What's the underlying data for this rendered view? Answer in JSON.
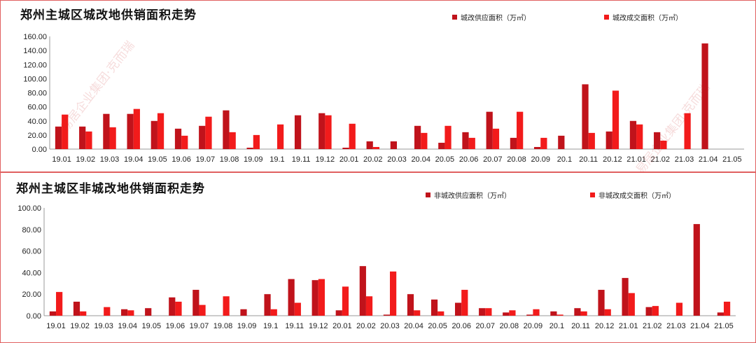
{
  "watermark_text": "易居企业集团·克而瑞",
  "chart_data": [
    {
      "type": "bar",
      "title": "郑州主城区城改地供销面积走势",
      "categories": [
        "19.01",
        "19.02",
        "19.03",
        "19.04",
        "19.05",
        "19.06",
        "19.07",
        "19.08",
        "19.09",
        "19.1",
        "19.11",
        "19.12",
        "20.01",
        "20.02",
        "20.03",
        "20.04",
        "20.05",
        "20.06",
        "20.07",
        "20.08",
        "20.09",
        "20.1",
        "20.11",
        "20.12",
        "21.01",
        "21.02",
        "21.03",
        "21.04",
        "21.05"
      ],
      "yticks": [
        "0.00",
        "20.00",
        "40.00",
        "60.00",
        "80.00",
        "100.00",
        "120.00",
        "140.00",
        "160.00"
      ],
      "ylim": [
        0,
        160
      ],
      "legend_position": "top-right",
      "series": [
        {
          "name": "城改供应面积（万㎡）",
          "color": "#c0131b",
          "values": [
            32,
            32,
            50,
            50,
            40,
            29,
            33,
            55,
            2,
            0,
            48,
            51,
            2,
            11,
            11,
            33,
            9,
            24,
            53,
            16,
            3,
            19,
            92,
            25,
            40,
            24,
            0,
            150,
            0
          ]
        },
        {
          "name": "城改成交面积（万㎡）",
          "color": "#f21b1b",
          "values": [
            49,
            25,
            31,
            57,
            51,
            19,
            46,
            24,
            20,
            35,
            0,
            48,
            36,
            3,
            0,
            23,
            33,
            16,
            29,
            53,
            16,
            0,
            23,
            83,
            35,
            12,
            51,
            0,
            0
          ]
        }
      ]
    },
    {
      "type": "bar",
      "title": "郑州主城区非城改地供销面积走势",
      "categories": [
        "19.01",
        "19.02",
        "19.03",
        "19.04",
        "19.05",
        "19.06",
        "19.07",
        "19.08",
        "19.09",
        "19.1",
        "19.11",
        "19.12",
        "20.01",
        "20.02",
        "20.03",
        "20.04",
        "20.05",
        "20.06",
        "20.07",
        "20.08",
        "20.09",
        "20.1",
        "20.11",
        "20.12",
        "21.01",
        "21.02",
        "21.03",
        "21.04",
        "21.05"
      ],
      "yticks": [
        "0.00",
        "20.00",
        "40.00",
        "60.00",
        "80.00",
        "100.00"
      ],
      "ylim": [
        0,
        100
      ],
      "legend_position": "top-right",
      "series": [
        {
          "name": "非城改供应面积（万㎡）",
          "color": "#c0131b",
          "values": [
            4,
            13,
            0,
            6,
            7,
            17,
            24,
            0,
            6,
            20,
            34,
            33,
            5,
            46,
            1,
            20,
            15,
            12,
            7,
            3,
            1,
            4,
            7,
            24,
            35,
            8,
            0,
            85,
            3
          ]
        },
        {
          "name": "非城改成交面积（万㎡）",
          "color": "#f21b1b",
          "values": [
            22,
            4,
            8,
            5,
            0,
            13,
            10,
            18,
            0,
            6,
            12,
            34,
            27,
            18,
            41,
            5,
            4,
            24,
            7,
            5,
            6,
            1,
            4,
            6,
            21,
            9,
            12,
            0,
            13
          ]
        }
      ]
    }
  ]
}
